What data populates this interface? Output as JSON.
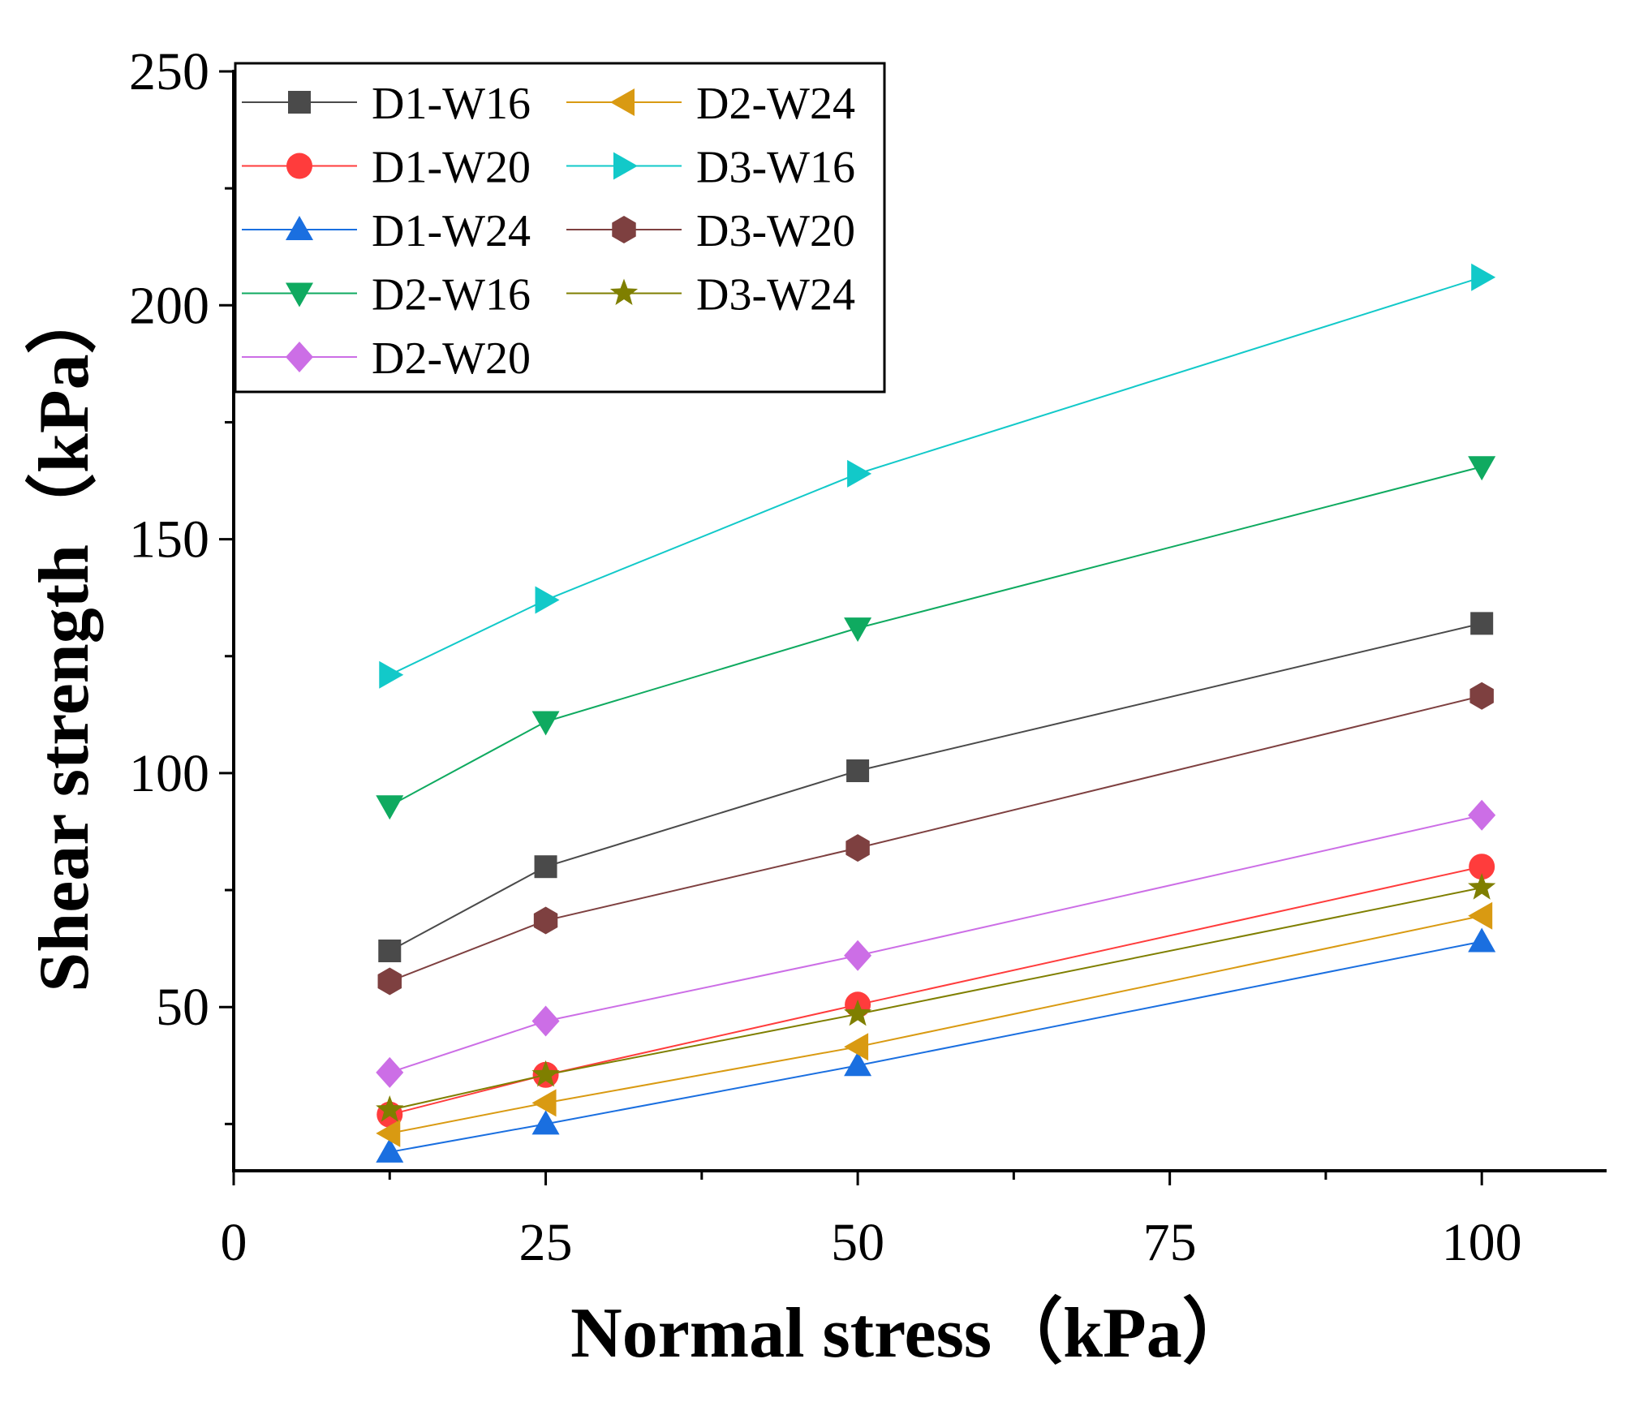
{
  "chart_data": {
    "type": "line",
    "title": "",
    "xlabel": "Normal stress（kPa）",
    "ylabel": "Shear strength（kPa）",
    "xlim": [
      0,
      110
    ],
    "ylim": [
      15,
      250
    ],
    "x_ticks": [
      0,
      25,
      50,
      75,
      100
    ],
    "y_ticks": [
      50,
      100,
      150,
      200,
      250
    ],
    "x_minor_ticks": [
      12.5,
      37.5,
      62.5,
      87.5
    ],
    "y_minor_ticks": [
      25,
      75,
      125,
      175,
      225
    ],
    "x": [
      12.5,
      25,
      50,
      100
    ],
    "legend_position": "top-left",
    "series": [
      {
        "name": "D1-W16",
        "values": [
          62,
          80,
          100.5,
          132
        ],
        "color": "#4a4a4a",
        "marker": "square"
      },
      {
        "name": "D1-W20",
        "values": [
          27,
          35.5,
          50.5,
          80
        ],
        "color": "#ff3c3c",
        "marker": "circle"
      },
      {
        "name": "D1-W24",
        "values": [
          19,
          25,
          37.5,
          64
        ],
        "color": "#1a6fe0",
        "marker": "triangle-up"
      },
      {
        "name": "D2-W16",
        "values": [
          93,
          111,
          131,
          165.5
        ],
        "color": "#0faa60",
        "marker": "triangle-down"
      },
      {
        "name": "D2-W20",
        "values": [
          36,
          47,
          61,
          91
        ],
        "color": "#cc6ee6",
        "marker": "diamond"
      },
      {
        "name": "D2-W24",
        "values": [
          23,
          29.5,
          41.5,
          69.5
        ],
        "color": "#d99a12",
        "marker": "triangle-left"
      },
      {
        "name": "D3-W16",
        "values": [
          121,
          137,
          164,
          206
        ],
        "color": "#12c9c9",
        "marker": "triangle-right"
      },
      {
        "name": "D3-W20",
        "values": [
          55.5,
          68.5,
          84,
          116.5
        ],
        "color": "#7e4040",
        "marker": "hexagon"
      },
      {
        "name": "D3-W24",
        "values": [
          28,
          35.5,
          48.5,
          75.5
        ],
        "color": "#7f7f00",
        "marker": "star"
      }
    ]
  }
}
